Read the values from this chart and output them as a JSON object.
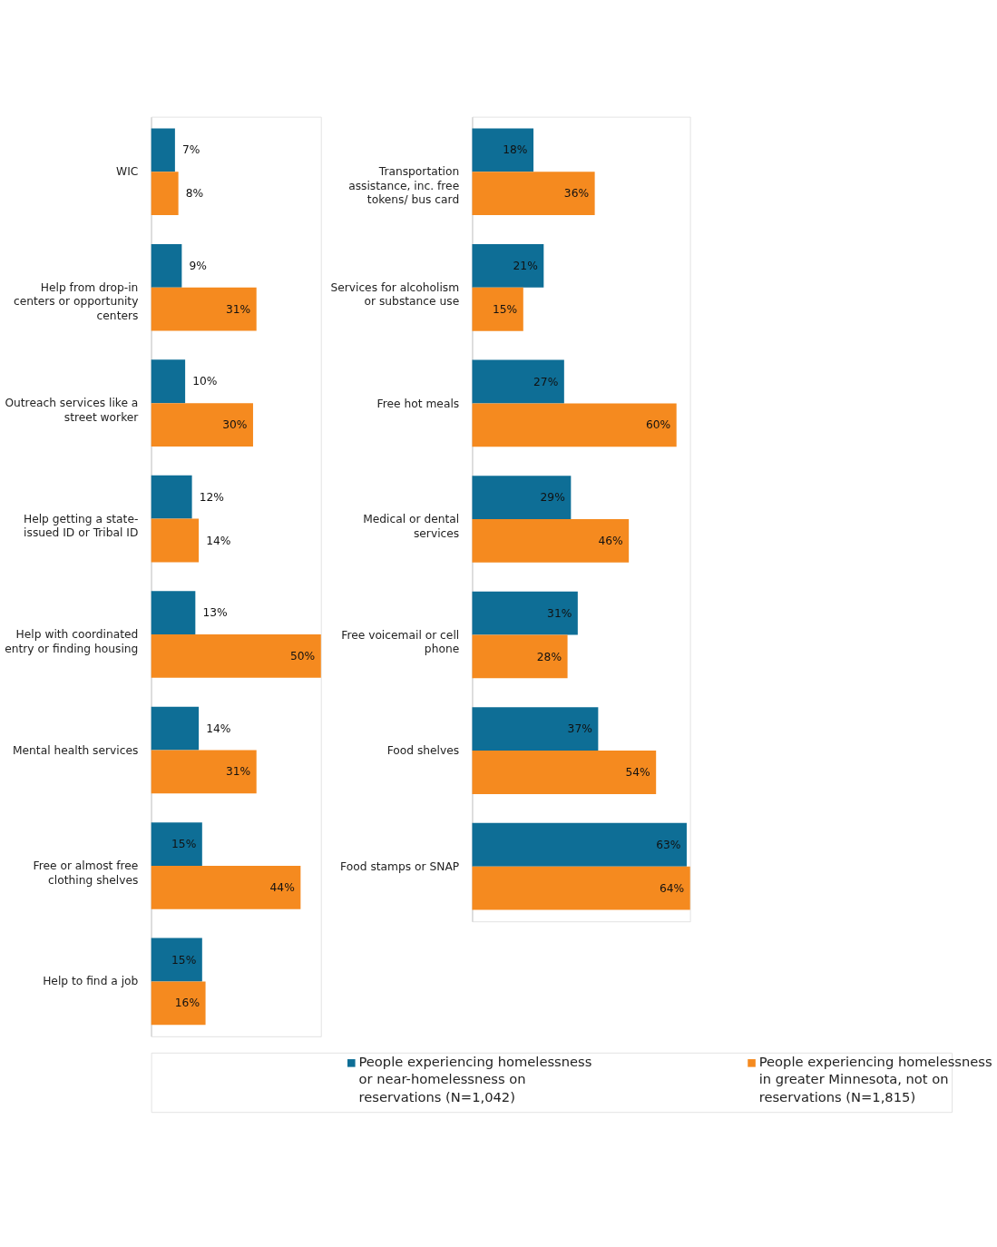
{
  "chart_data": [
    {
      "type": "bar",
      "orientation": "horizontal",
      "legend": "bottom",
      "categories": [
        "WIC",
        "Help from drop-in centers or opportunity centers",
        "Outreach services like a street worker",
        "Help getting a state-issued ID or Tribal ID",
        "Help with coordinated entry or finding housing",
        "Mental health services",
        "Free or almost free clothing shelves",
        "Help to find a job"
      ],
      "series": [
        {
          "name": "People experiencing homelessness or near-homelessness on reservations (N=1,042)",
          "color": "#0e6e96",
          "values": [
            7,
            9,
            10,
            12,
            13,
            14,
            15,
            15
          ],
          "value_labels": [
            "7%",
            "9%",
            "10%",
            "12%",
            "13%",
            "14%",
            "15%",
            "15%"
          ]
        },
        {
          "name": "People experiencing homelessness in greater Minnesota, not on reservations (N=1,815)",
          "color": "#f58a1f",
          "values": [
            8,
            31,
            30,
            14,
            50,
            31,
            44,
            16
          ],
          "value_labels": [
            "8%",
            "31%",
            "30%",
            "14%",
            "50%",
            "31%",
            "44%",
            "16%"
          ]
        }
      ]
    },
    {
      "type": "bar",
      "orientation": "horizontal",
      "categories": [
        "Transportation assistance, inc. free tokens/ bus card",
        "Services for alcoholism or substance use",
        "Free hot meals",
        "Medical or dental services",
        "Free voicemail or cell phone",
        "Food shelves",
        "Food stamps or SNAP"
      ],
      "series": [
        {
          "color": "#0e6e96",
          "values": [
            18,
            21,
            27,
            29,
            31,
            37,
            63
          ],
          "value_labels": [
            "18%",
            "21%",
            "27%",
            "29%",
            "31%",
            "37%",
            "63%"
          ]
        },
        {
          "color": "#f58a1f",
          "values": [
            36,
            15,
            60,
            46,
            28,
            54,
            64
          ],
          "value_labels": [
            "36%",
            "15%",
            "60%",
            "46%",
            "28%",
            "54%",
            "64%"
          ]
        }
      ]
    }
  ]
}
